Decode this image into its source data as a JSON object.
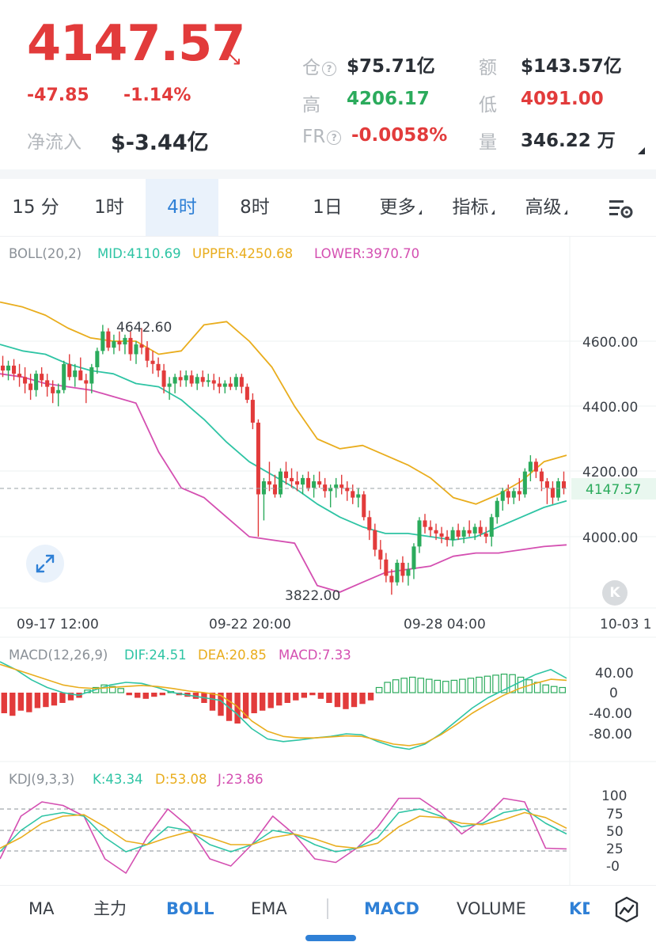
{
  "header": {
    "price": "4147.57",
    "change": "-47.85",
    "change_pct": "-1.14%",
    "net_inflow_label": "净流入",
    "net_inflow_value": "$-3.44亿",
    "stats": {
      "oi_label": "仓",
      "oi_value": "$75.71亿",
      "turnover_label": "额",
      "turnover_value": "$143.57亿",
      "high_label": "高",
      "high_value": "4206.17",
      "low_label": "低",
      "low_value": "4091.00",
      "fr_label": "FR",
      "fr_value": "-0.0058%",
      "volume_label": "量",
      "volume_value": "346.22 万"
    },
    "colors": {
      "up": "#2bab5c",
      "down": "#e23b3b",
      "accent": "#2f80d6"
    }
  },
  "timeframe_tabs": [
    "15 分",
    "1时",
    "4时",
    "8时",
    "1日",
    "更多",
    "指标",
    "高级"
  ],
  "active_timeframe": "4时",
  "settings_icon": "chart-settings-icon",
  "boll": {
    "title": "BOLL(20,2)",
    "mid": "MID:4110.69",
    "upper": "UPPER:4250.68",
    "lower": "LOWER:3970.70",
    "colors": {
      "mid": "#2ec4a4",
      "upper": "#e9ad1d",
      "lower": "#d44fb1"
    }
  },
  "price_axis": [
    "4600.00",
    "4400.00",
    "4200.00",
    "4000.00"
  ],
  "current_price_tag": "4147.57",
  "high_marker": "4642.60",
  "low_marker": "3822.00",
  "time_axis": [
    "09-17 12:00",
    "09-22 20:00",
    "09-28 04:00",
    "10-03 1"
  ],
  "macd": {
    "title": "MACD(12,26,9)",
    "dif": "DIF:24.51",
    "dea": "DEA:20.85",
    "macd": "MACD:7.33",
    "axis": [
      "40.00",
      "0",
      "-40.00",
      "-80.00"
    ]
  },
  "kdj": {
    "title": "KDJ(9,3,3)",
    "k": "K:43.34",
    "d": "D:53.08",
    "j": "J:23.86",
    "axis": [
      "100",
      "75",
      "50",
      "25",
      "-0"
    ]
  },
  "bottom_tabs": {
    "main": [
      "MA",
      "主力",
      "BOLL",
      "EMA"
    ],
    "sub": [
      "MACD",
      "VOLUME",
      "KD"
    ],
    "active_main": "BOLL",
    "active_sub": "MACD"
  },
  "chart_data": {
    "type": "candlestick",
    "ylim": [
      3780,
      4760
    ],
    "candles": [
      [
        4525,
        4555,
        4490,
        4510
      ],
      [
        4510,
        4540,
        4480,
        4525
      ],
      [
        4525,
        4545,
        4480,
        4500
      ],
      [
        4500,
        4530,
        4460,
        4490
      ],
      [
        4490,
        4520,
        4440,
        4470
      ],
      [
        4470,
        4500,
        4420,
        4450
      ],
      [
        4450,
        4510,
        4430,
        4500
      ],
      [
        4500,
        4520,
        4460,
        4480
      ],
      [
        4480,
        4500,
        4430,
        4460
      ],
      [
        4460,
        4480,
        4410,
        4440
      ],
      [
        4440,
        4470,
        4400,
        4450
      ],
      [
        4450,
        4540,
        4440,
        4530
      ],
      [
        4530,
        4560,
        4480,
        4490
      ],
      [
        4490,
        4530,
        4460,
        4510
      ],
      [
        4510,
        4550,
        4480,
        4480
      ],
      [
        4480,
        4500,
        4410,
        4470
      ],
      [
        4470,
        4530,
        4440,
        4520
      ],
      [
        4520,
        4580,
        4500,
        4570
      ],
      [
        4570,
        4650,
        4560,
        4630
      ],
      [
        4630,
        4640,
        4570,
        4580
      ],
      [
        4580,
        4620,
        4560,
        4600
      ],
      [
        4600,
        4630,
        4570,
        4590
      ],
      [
        4590,
        4620,
        4560,
        4610
      ],
      [
        4610,
        4630,
        4540,
        4560
      ],
      [
        4560,
        4600,
        4530,
        4590
      ],
      [
        4590,
        4640,
        4560,
        4580
      ],
      [
        4580,
        4600,
        4520,
        4540
      ],
      [
        4540,
        4570,
        4500,
        4530
      ],
      [
        4530,
        4550,
        4490,
        4510
      ],
      [
        4510,
        4530,
        4440,
        4460
      ],
      [
        4460,
        4490,
        4420,
        4470
      ],
      [
        4470,
        4500,
        4440,
        4490
      ],
      [
        4490,
        4510,
        4460,
        4480
      ],
      [
        4480,
        4510,
        4460,
        4495
      ],
      [
        4495,
        4510,
        4460,
        4470
      ],
      [
        4470,
        4500,
        4450,
        4490
      ],
      [
        4490,
        4510,
        4460,
        4475
      ],
      [
        4475,
        4500,
        4460,
        4480
      ],
      [
        4480,
        4500,
        4450,
        4470
      ],
      [
        4470,
        4490,
        4440,
        4460
      ],
      [
        4460,
        4480,
        4440,
        4470
      ],
      [
        4470,
        4490,
        4450,
        4460
      ],
      [
        4460,
        4500,
        4450,
        4490
      ],
      [
        4490,
        4500,
        4440,
        4460
      ],
      [
        4460,
        4470,
        4410,
        4420
      ],
      [
        4420,
        4440,
        4330,
        4350
      ],
      [
        4350,
        4360,
        4000,
        4130
      ],
      [
        4130,
        4180,
        4050,
        4170
      ],
      [
        4170,
        4230,
        4140,
        4160
      ],
      [
        4160,
        4190,
        4120,
        4130
      ],
      [
        4130,
        4210,
        4120,
        4200
      ],
      [
        4200,
        4230,
        4160,
        4180
      ],
      [
        4180,
        4210,
        4150,
        4170
      ],
      [
        4170,
        4200,
        4140,
        4160
      ],
      [
        4160,
        4190,
        4130,
        4180
      ],
      [
        4180,
        4200,
        4140,
        4150
      ],
      [
        4150,
        4190,
        4120,
        4170
      ],
      [
        4170,
        4200,
        4150,
        4160
      ],
      [
        4160,
        4180,
        4120,
        4140
      ],
      [
        4140,
        4160,
        4090,
        4150
      ],
      [
        4150,
        4180,
        4120,
        4160
      ],
      [
        4160,
        4190,
        4130,
        4150
      ],
      [
        4150,
        4170,
        4110,
        4140
      ],
      [
        4140,
        4160,
        4100,
        4120
      ],
      [
        4120,
        4150,
        4090,
        4130
      ],
      [
        4130,
        4140,
        4050,
        4060
      ],
      [
        4060,
        4080,
        3990,
        4020
      ],
      [
        4020,
        4040,
        3940,
        3960
      ],
      [
        3960,
        3990,
        3900,
        3930
      ],
      [
        3930,
        3950,
        3860,
        3880
      ],
      [
        3880,
        3900,
        3822,
        3860
      ],
      [
        3860,
        3930,
        3850,
        3920
      ],
      [
        3920,
        3940,
        3860,
        3880
      ],
      [
        3880,
        3920,
        3850,
        3900
      ],
      [
        3900,
        3980,
        3870,
        3970
      ],
      [
        3970,
        4060,
        3950,
        4050
      ],
      [
        4050,
        4070,
        4010,
        4030
      ],
      [
        4030,
        4050,
        4000,
        4020
      ],
      [
        4020,
        4040,
        3990,
        4010
      ],
      [
        4010,
        4030,
        3980,
        4000
      ],
      [
        4000,
        4020,
        3970,
        3990
      ],
      [
        3990,
        4030,
        3970,
        4020
      ],
      [
        4020,
        4040,
        3990,
        4000
      ],
      [
        4000,
        4030,
        3980,
        4020
      ],
      [
        4020,
        4050,
        4000,
        4010
      ],
      [
        4010,
        4040,
        3990,
        4030
      ],
      [
        4030,
        4050,
        4000,
        4010
      ],
      [
        4010,
        4030,
        3980,
        4000
      ],
      [
        4000,
        4070,
        3970,
        4060
      ],
      [
        4060,
        4120,
        4040,
        4110
      ],
      [
        4110,
        4150,
        4080,
        4140
      ],
      [
        4140,
        4160,
        4100,
        4120
      ],
      [
        4120,
        4150,
        4100,
        4140
      ],
      [
        4140,
        4180,
        4110,
        4130
      ],
      [
        4130,
        4210,
        4120,
        4200
      ],
      [
        4200,
        4250,
        4170,
        4230
      ],
      [
        4230,
        4240,
        4180,
        4200
      ],
      [
        4200,
        4210,
        4140,
        4170
      ],
      [
        4170,
        4180,
        4100,
        4150
      ],
      [
        4150,
        4170,
        4100,
        4120
      ],
      [
        4120,
        4180,
        4110,
        4170
      ],
      [
        4170,
        4200,
        4130,
        4148
      ]
    ],
    "boll_upper": [
      4720,
      4705,
      4680,
      4640,
      4610,
      4600,
      4600,
      4560,
      4570,
      4650,
      4660,
      4600,
      4520,
      4400,
      4300,
      4270,
      4280,
      4250,
      4220,
      4180,
      4120,
      4100,
      4130,
      4170,
      4230,
      4250
    ],
    "boll_mid": [
      4590,
      4570,
      4560,
      4530,
      4510,
      4500,
      4470,
      4460,
      4420,
      4360,
      4290,
      4230,
      4190,
      4150,
      4100,
      4060,
      4030,
      4010,
      4010,
      4000,
      3990,
      4000,
      4030,
      4060,
      4090,
      4110
    ],
    "boll_lower": [
      4500,
      4490,
      4470,
      4460,
      4450,
      4430,
      4410,
      4260,
      4150,
      4120,
      4060,
      4000,
      3990,
      3980,
      3850,
      3830,
      3860,
      3890,
      3900,
      3910,
      3940,
      3950,
      3950,
      3960,
      3970,
      3975
    ],
    "macd_hist": [
      -40,
      -45,
      -35,
      -38,
      -30,
      -28,
      -25,
      -20,
      -15,
      -10,
      5,
      10,
      15,
      12,
      8,
      -5,
      -10,
      -12,
      -8,
      -5,
      2,
      -5,
      -8,
      -12,
      -20,
      -35,
      -45,
      -55,
      -60,
      -50,
      -40,
      -35,
      -30,
      -25,
      -20,
      -15,
      -10,
      -5,
      -12,
      -20,
      -28,
      -32,
      -28,
      -22,
      -15,
      10,
      20,
      25,
      28,
      30,
      28,
      26,
      24,
      22,
      24,
      26,
      28,
      30,
      32,
      34,
      36,
      35,
      30,
      25,
      20,
      15,
      12,
      10
    ],
    "macd_dif": [
      60,
      45,
      25,
      10,
      0,
      -5,
      5,
      15,
      20,
      18,
      10,
      0,
      -5,
      -10,
      -15,
      -40,
      -70,
      -90,
      -95,
      -92,
      -88,
      -85,
      -80,
      -82,
      -95,
      -105,
      -110,
      -100,
      -80,
      -55,
      -30,
      -10,
      5,
      20,
      35,
      45,
      28
    ],
    "macd_dea": [
      55,
      45,
      35,
      25,
      15,
      10,
      8,
      10,
      12,
      14,
      12,
      8,
      3,
      0,
      -5,
      -25,
      -55,
      -75,
      -85,
      -88,
      -88,
      -86,
      -84,
      -85,
      -92,
      -100,
      -103,
      -98,
      -82,
      -62,
      -40,
      -22,
      -5,
      8,
      18,
      26,
      24
    ],
    "kdj_k": [
      20,
      50,
      70,
      75,
      70,
      40,
      20,
      30,
      55,
      50,
      30,
      20,
      30,
      50,
      45,
      30,
      20,
      25,
      40,
      75,
      80,
      70,
      55,
      60,
      75,
      80,
      60,
      45
    ],
    "kdj_d": [
      25,
      40,
      60,
      70,
      72,
      55,
      35,
      30,
      40,
      48,
      40,
      30,
      30,
      40,
      45,
      38,
      28,
      25,
      32,
      55,
      70,
      68,
      60,
      58,
      65,
      75,
      68,
      53
    ],
    "kdj_j": [
      10,
      70,
      90,
      85,
      70,
      10,
      -10,
      40,
      80,
      55,
      10,
      0,
      30,
      70,
      45,
      10,
      5,
      25,
      55,
      95,
      95,
      75,
      45,
      65,
      95,
      90,
      25,
      24
    ]
  }
}
